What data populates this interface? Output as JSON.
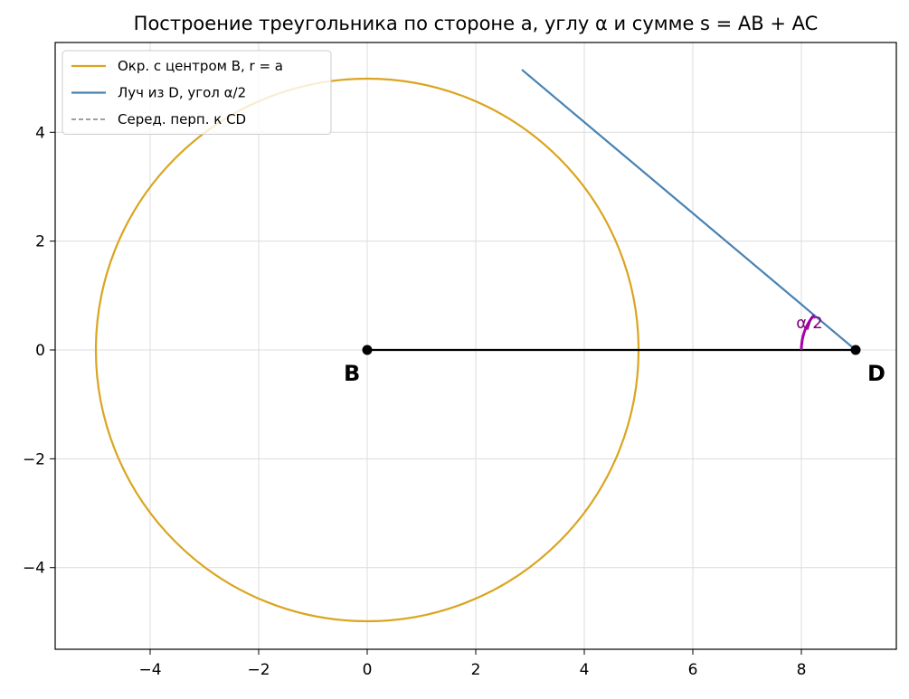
{
  "chart_data": {
    "type": "line",
    "title": "Построение треугольника по стороне a, углу α и сумме s = AB + AC",
    "xlabel": "",
    "ylabel": "",
    "xlim": [
      -5.75,
      9.75
    ],
    "ylim": [
      -5.5,
      5.65
    ],
    "xticks": [
      -4,
      -2,
      0,
      2,
      4,
      6,
      8
    ],
    "yticks": [
      -4,
      -2,
      0,
      2,
      4
    ],
    "xtick_labels": [
      "−4",
      "−2",
      "0",
      "2",
      "4",
      "6",
      "8"
    ],
    "ytick_labels": [
      "−4",
      "−2",
      "0",
      "2",
      "4"
    ],
    "grid": true,
    "legend_position": "top-left",
    "series": [
      {
        "name": "Окр. с центром B, r = a",
        "kind": "circle",
        "center": [
          0,
          0
        ],
        "radius": 5,
        "color": "#DAA520"
      },
      {
        "name": "Луч из D, угол α/2",
        "kind": "segment",
        "x": [
          9,
          2.85
        ],
        "y": [
          0,
          5.15
        ],
        "color": "#4682B4"
      },
      {
        "name": "Серед. перп. к CD",
        "kind": "dashed",
        "color": "#808080"
      }
    ],
    "segments": [
      {
        "from": [
          0,
          0
        ],
        "to": [
          9,
          0
        ],
        "color": "#000000"
      }
    ],
    "points": [
      {
        "label": "B",
        "x": 0,
        "y": 0
      },
      {
        "label": "D",
        "x": 9,
        "y": 0
      }
    ],
    "angle_marker": {
      "label": "α/2",
      "center": [
        9,
        0
      ],
      "radius": 1.0,
      "from_deg": 140,
      "to_deg": 180,
      "color": "#AA00AA",
      "label_color": "#800080"
    }
  }
}
